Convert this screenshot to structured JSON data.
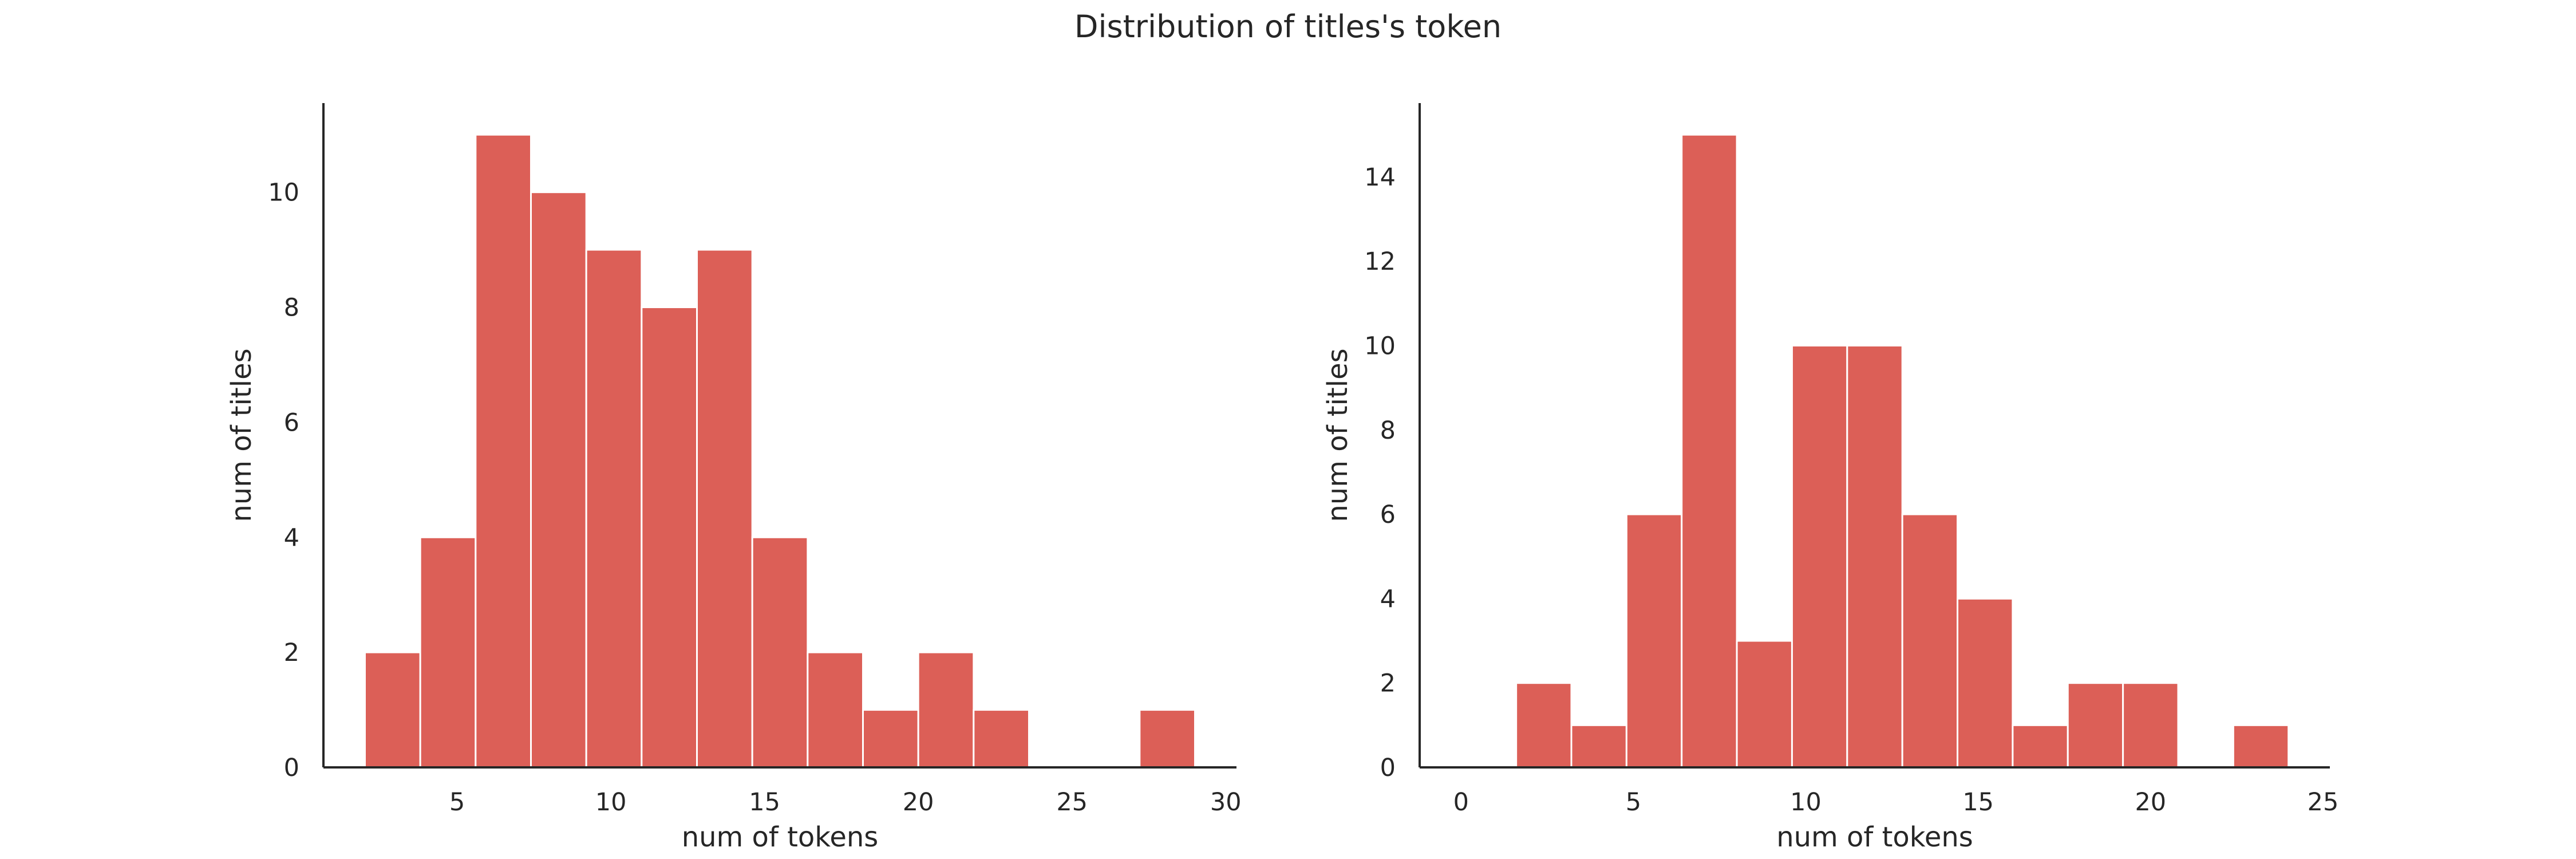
{
  "figure": {
    "suptitle": "Distribution of titles's token"
  },
  "chart_data": [
    {
      "type": "bar",
      "title": "",
      "xlabel": "num of tokens",
      "ylabel": "num of titles",
      "xlim": [
        0.65,
        30.35
      ],
      "ylim": [
        0,
        11.55
      ],
      "xticks": [
        5,
        10,
        15,
        20,
        25,
        30
      ],
      "yticks": [
        0,
        2,
        4,
        6,
        8,
        10
      ],
      "grid": false,
      "color": "#dc5f57",
      "edgecolor": "#ffffff",
      "bins": [
        {
          "x0": 2.0,
          "x1": 3.8,
          "count": 2
        },
        {
          "x0": 3.8,
          "x1": 5.6,
          "count": 4
        },
        {
          "x0": 5.6,
          "x1": 7.4,
          "count": 11
        },
        {
          "x0": 7.4,
          "x1": 9.2,
          "count": 10
        },
        {
          "x0": 9.2,
          "x1": 11.0,
          "count": 9
        },
        {
          "x0": 11.0,
          "x1": 12.8,
          "count": 8
        },
        {
          "x0": 12.8,
          "x1": 14.6,
          "count": 9
        },
        {
          "x0": 14.6,
          "x1": 16.4,
          "count": 4
        },
        {
          "x0": 16.4,
          "x1": 18.2,
          "count": 2
        },
        {
          "x0": 18.2,
          "x1": 20.0,
          "count": 1
        },
        {
          "x0": 20.0,
          "x1": 21.8,
          "count": 2
        },
        {
          "x0": 21.8,
          "x1": 23.6,
          "count": 1
        },
        {
          "x0": 23.6,
          "x1": 25.4,
          "count": 0
        },
        {
          "x0": 25.4,
          "x1": 27.2,
          "count": 0
        },
        {
          "x0": 27.2,
          "x1": 29.0,
          "count": 1
        }
      ]
    },
    {
      "type": "bar",
      "title": "",
      "xlabel": "num of tokens",
      "ylabel": "num of titles",
      "xlim": [
        -1.2,
        25.2
      ],
      "ylim": [
        0,
        15.75
      ],
      "xticks": [
        0,
        5,
        10,
        15,
        20,
        25
      ],
      "yticks": [
        0,
        2,
        4,
        6,
        8,
        10,
        12,
        14
      ],
      "grid": false,
      "color": "#dc5f57",
      "edgecolor": "#ffffff",
      "bins": [
        {
          "x0": 0.0,
          "x1": 1.6,
          "count": 0
        },
        {
          "x0": 1.6,
          "x1": 3.2,
          "count": 2
        },
        {
          "x0": 3.2,
          "x1": 4.8,
          "count": 1
        },
        {
          "x0": 4.8,
          "x1": 6.4,
          "count": 6
        },
        {
          "x0": 6.4,
          "x1": 8.0,
          "count": 15
        },
        {
          "x0": 8.0,
          "x1": 9.6,
          "count": 3
        },
        {
          "x0": 9.6,
          "x1": 11.2,
          "count": 10
        },
        {
          "x0": 11.2,
          "x1": 12.8,
          "count": 10
        },
        {
          "x0": 12.8,
          "x1": 14.4,
          "count": 6
        },
        {
          "x0": 14.4,
          "x1": 16.0,
          "count": 4
        },
        {
          "x0": 16.0,
          "x1": 17.6,
          "count": 1
        },
        {
          "x0": 17.6,
          "x1": 19.2,
          "count": 2
        },
        {
          "x0": 19.2,
          "x1": 20.8,
          "count": 2
        },
        {
          "x0": 20.8,
          "x1": 22.4,
          "count": 0
        },
        {
          "x0": 22.4,
          "x1": 24.0,
          "count": 1
        }
      ]
    }
  ]
}
